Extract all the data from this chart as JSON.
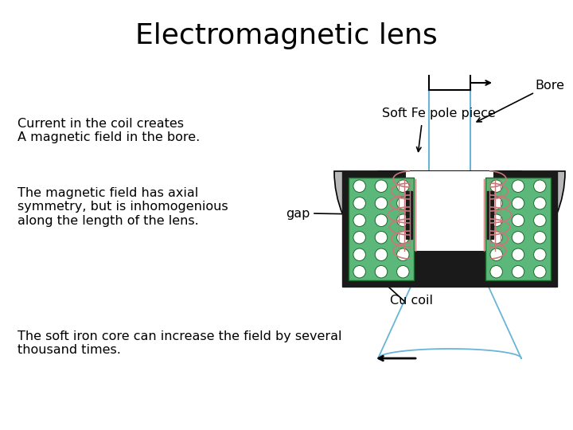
{
  "title": "Electromagnetic lens",
  "title_fontsize": 26,
  "bg_color": "#ffffff",
  "text_color": "#000000",
  "label_current": "Current in the coil creates\nA magnetic field in the bore.",
  "label_axial": "The magnetic field has axial\nsymmetry, but is inhomogenious\nalong the length of the lens.",
  "label_soft_iron": "The soft iron core can increase the field by several\nthousand times.",
  "label_bore": "Bore",
  "label_soft_fe": "Soft Fe pole piece",
  "label_gap": "gap",
  "label_cu_coil": "Cu coil",
  "iron_color": "#1a1a1a",
  "coil_fill_color": "#5cb87a",
  "coil_stroke_color": "#1a6b2a",
  "coil_winding_color": "#c87878",
  "bore_beam_color": "#6ab4d8",
  "pole_piece_color": "#b8b8b8",
  "text_fontsize": 11.5
}
